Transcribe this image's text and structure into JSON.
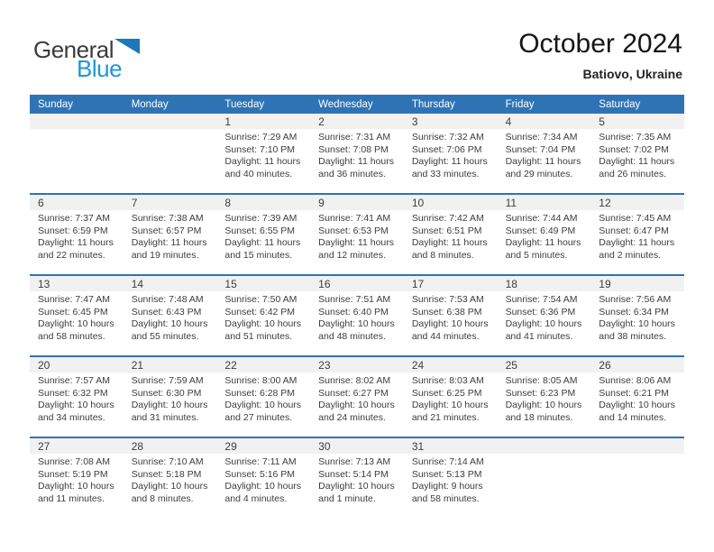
{
  "logo": {
    "word1": "General",
    "word2": "Blue"
  },
  "header": {
    "title": "October 2024",
    "subtitle": "Batiovo, Ukraine"
  },
  "colors": {
    "header_bg": "#2E74B5",
    "week_separator": "#2E74B5",
    "number_strip_bg": "#F1F1F1",
    "header_text": "#FFFFFF",
    "body_text": "#3D3D3D",
    "logo_blue_word": "#2096D5",
    "logo_triangle": "#1C77BB"
  },
  "calendar": {
    "day_headers": [
      "Sunday",
      "Monday",
      "Tuesday",
      "Wednesday",
      "Thursday",
      "Friday",
      "Saturday"
    ],
    "weeks": [
      [
        null,
        null,
        {
          "day": "1",
          "lines": [
            "Sunrise: 7:29 AM",
            "Sunset: 7:10 PM",
            "Daylight: 11 hours",
            "and 40 minutes."
          ]
        },
        {
          "day": "2",
          "lines": [
            "Sunrise: 7:31 AM",
            "Sunset: 7:08 PM",
            "Daylight: 11 hours",
            "and 36 minutes."
          ]
        },
        {
          "day": "3",
          "lines": [
            "Sunrise: 7:32 AM",
            "Sunset: 7:06 PM",
            "Daylight: 11 hours",
            "and 33 minutes."
          ]
        },
        {
          "day": "4",
          "lines": [
            "Sunrise: 7:34 AM",
            "Sunset: 7:04 PM",
            "Daylight: 11 hours",
            "and 29 minutes."
          ]
        },
        {
          "day": "5",
          "lines": [
            "Sunrise: 7:35 AM",
            "Sunset: 7:02 PM",
            "Daylight: 11 hours",
            "and 26 minutes."
          ]
        }
      ],
      [
        {
          "day": "6",
          "lines": [
            "Sunrise: 7:37 AM",
            "Sunset: 6:59 PM",
            "Daylight: 11 hours",
            "and 22 minutes."
          ]
        },
        {
          "day": "7",
          "lines": [
            "Sunrise: 7:38 AM",
            "Sunset: 6:57 PM",
            "Daylight: 11 hours",
            "and 19 minutes."
          ]
        },
        {
          "day": "8",
          "lines": [
            "Sunrise: 7:39 AM",
            "Sunset: 6:55 PM",
            "Daylight: 11 hours",
            "and 15 minutes."
          ]
        },
        {
          "day": "9",
          "lines": [
            "Sunrise: 7:41 AM",
            "Sunset: 6:53 PM",
            "Daylight: 11 hours",
            "and 12 minutes."
          ]
        },
        {
          "day": "10",
          "lines": [
            "Sunrise: 7:42 AM",
            "Sunset: 6:51 PM",
            "Daylight: 11 hours",
            "and 8 minutes."
          ]
        },
        {
          "day": "11",
          "lines": [
            "Sunrise: 7:44 AM",
            "Sunset: 6:49 PM",
            "Daylight: 11 hours",
            "and 5 minutes."
          ]
        },
        {
          "day": "12",
          "lines": [
            "Sunrise: 7:45 AM",
            "Sunset: 6:47 PM",
            "Daylight: 11 hours",
            "and 2 minutes."
          ]
        }
      ],
      [
        {
          "day": "13",
          "lines": [
            "Sunrise: 7:47 AM",
            "Sunset: 6:45 PM",
            "Daylight: 10 hours",
            "and 58 minutes."
          ]
        },
        {
          "day": "14",
          "lines": [
            "Sunrise: 7:48 AM",
            "Sunset: 6:43 PM",
            "Daylight: 10 hours",
            "and 55 minutes."
          ]
        },
        {
          "day": "15",
          "lines": [
            "Sunrise: 7:50 AM",
            "Sunset: 6:42 PM",
            "Daylight: 10 hours",
            "and 51 minutes."
          ]
        },
        {
          "day": "16",
          "lines": [
            "Sunrise: 7:51 AM",
            "Sunset: 6:40 PM",
            "Daylight: 10 hours",
            "and 48 minutes."
          ]
        },
        {
          "day": "17",
          "lines": [
            "Sunrise: 7:53 AM",
            "Sunset: 6:38 PM",
            "Daylight: 10 hours",
            "and 44 minutes."
          ]
        },
        {
          "day": "18",
          "lines": [
            "Sunrise: 7:54 AM",
            "Sunset: 6:36 PM",
            "Daylight: 10 hours",
            "and 41 minutes."
          ]
        },
        {
          "day": "19",
          "lines": [
            "Sunrise: 7:56 AM",
            "Sunset: 6:34 PM",
            "Daylight: 10 hours",
            "and 38 minutes."
          ]
        }
      ],
      [
        {
          "day": "20",
          "lines": [
            "Sunrise: 7:57 AM",
            "Sunset: 6:32 PM",
            "Daylight: 10 hours",
            "and 34 minutes."
          ]
        },
        {
          "day": "21",
          "lines": [
            "Sunrise: 7:59 AM",
            "Sunset: 6:30 PM",
            "Daylight: 10 hours",
            "and 31 minutes."
          ]
        },
        {
          "day": "22",
          "lines": [
            "Sunrise: 8:00 AM",
            "Sunset: 6:28 PM",
            "Daylight: 10 hours",
            "and 27 minutes."
          ]
        },
        {
          "day": "23",
          "lines": [
            "Sunrise: 8:02 AM",
            "Sunset: 6:27 PM",
            "Daylight: 10 hours",
            "and 24 minutes."
          ]
        },
        {
          "day": "24",
          "lines": [
            "Sunrise: 8:03 AM",
            "Sunset: 6:25 PM",
            "Daylight: 10 hours",
            "and 21 minutes."
          ]
        },
        {
          "day": "25",
          "lines": [
            "Sunrise: 8:05 AM",
            "Sunset: 6:23 PM",
            "Daylight: 10 hours",
            "and 18 minutes."
          ]
        },
        {
          "day": "26",
          "lines": [
            "Sunrise: 8:06 AM",
            "Sunset: 6:21 PM",
            "Daylight: 10 hours",
            "and 14 minutes."
          ]
        }
      ],
      [
        {
          "day": "27",
          "lines": [
            "Sunrise: 7:08 AM",
            "Sunset: 5:19 PM",
            "Daylight: 10 hours",
            "and 11 minutes."
          ]
        },
        {
          "day": "28",
          "lines": [
            "Sunrise: 7:10 AM",
            "Sunset: 5:18 PM",
            "Daylight: 10 hours",
            "and 8 minutes."
          ]
        },
        {
          "day": "29",
          "lines": [
            "Sunrise: 7:11 AM",
            "Sunset: 5:16 PM",
            "Daylight: 10 hours",
            "and 4 minutes."
          ]
        },
        {
          "day": "30",
          "lines": [
            "Sunrise: 7:13 AM",
            "Sunset: 5:14 PM",
            "Daylight: 10 hours",
            "and 1 minute."
          ]
        },
        {
          "day": "31",
          "lines": [
            "Sunrise: 7:14 AM",
            "Sunset: 5:13 PM",
            "Daylight: 9 hours",
            "and 58 minutes."
          ]
        },
        null,
        null
      ]
    ]
  }
}
